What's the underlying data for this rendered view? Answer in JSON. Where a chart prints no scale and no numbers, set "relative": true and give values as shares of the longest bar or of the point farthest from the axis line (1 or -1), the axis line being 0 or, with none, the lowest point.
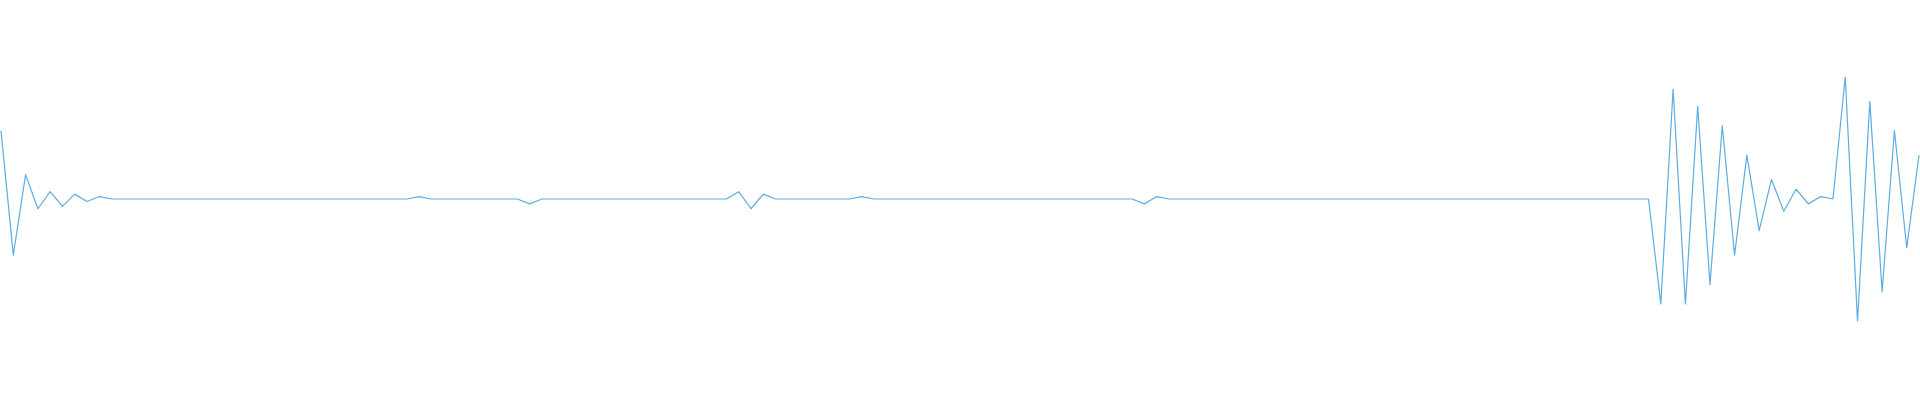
{
  "chart_data": {
    "type": "line",
    "relative": true,
    "line_style": "solid",
    "marker": "none",
    "categories": [
      null,
      null,
      null,
      null,
      null,
      null,
      null,
      null,
      null,
      null,
      null,
      null,
      null,
      null,
      null,
      null,
      null,
      null,
      null,
      null,
      null,
      null,
      null,
      null,
      null,
      null,
      null,
      null,
      null,
      null,
      null,
      null,
      null,
      null,
      null,
      null,
      null,
      null,
      null,
      null,
      null,
      null,
      null,
      null,
      null,
      null,
      null,
      null,
      null,
      null,
      null,
      null,
      null,
      null,
      null,
      null,
      null,
      null,
      null,
      null,
      null,
      null,
      null,
      null,
      null,
      null,
      null,
      null,
      null,
      null,
      null,
      null,
      null,
      null,
      null,
      null,
      null,
      null,
      null,
      null,
      null,
      null,
      null,
      null,
      null,
      null,
      null,
      null,
      null,
      null,
      null,
      null,
      null,
      null,
      null,
      null,
      null,
      null,
      null,
      null,
      null,
      null,
      null,
      null,
      null,
      null,
      null,
      null,
      null,
      null,
      null,
      null,
      null,
      null,
      null,
      null,
      null,
      null,
      null,
      null,
      null,
      null,
      null,
      null,
      null,
      null,
      null,
      null,
      null,
      null,
      null,
      null,
      null,
      null,
      null,
      null,
      null,
      null,
      null,
      null,
      null,
      null,
      null,
      null,
      null,
      null,
      null,
      null,
      null,
      null,
      null,
      null,
      null,
      null,
      null,
      null,
      null
    ],
    "series": [
      {
        "color": "#5dade2",
        "values": [
          0.78,
          0.27,
          0.6,
          0.46,
          0.53,
          0.47,
          0.52,
          0.49,
          0.51,
          0.5,
          0.5,
          0.5,
          0.5,
          0.5,
          0.5,
          0.5,
          0.5,
          0.5,
          0.5,
          0.5,
          0.5,
          0.5,
          0.5,
          0.5,
          0.5,
          0.5,
          0.5,
          0.5,
          0.5,
          0.5,
          0.5,
          0.5,
          0.5,
          0.5,
          0.51,
          0.5,
          0.5,
          0.5,
          0.5,
          0.5,
          0.5,
          0.5,
          0.5,
          0.48,
          0.5,
          0.5,
          0.5,
          0.5,
          0.5,
          0.5,
          0.5,
          0.5,
          0.5,
          0.5,
          0.5,
          0.5,
          0.5,
          0.5,
          0.5,
          0.5,
          0.53,
          0.46,
          0.52,
          0.5,
          0.5,
          0.5,
          0.5,
          0.5,
          0.5,
          0.5,
          0.51,
          0.5,
          0.5,
          0.5,
          0.5,
          0.5,
          0.5,
          0.5,
          0.5,
          0.5,
          0.5,
          0.5,
          0.5,
          0.5,
          0.5,
          0.5,
          0.5,
          0.5,
          0.5,
          0.5,
          0.5,
          0.5,
          0.5,
          0.48,
          0.51,
          0.5,
          0.5,
          0.5,
          0.5,
          0.5,
          0.5,
          0.5,
          0.5,
          0.5,
          0.5,
          0.5,
          0.5,
          0.5,
          0.5,
          0.5,
          0.5,
          0.5,
          0.5,
          0.5,
          0.5,
          0.5,
          0.5,
          0.5,
          0.5,
          0.5,
          0.5,
          0.5,
          0.5,
          0.5,
          0.5,
          0.5,
          0.5,
          0.5,
          0.5,
          0.5,
          0.5,
          0.5,
          0.5,
          0.5,
          0.5,
          0.07,
          0.95,
          0.07,
          0.88,
          0.15,
          0.8,
          0.27,
          0.68,
          0.37,
          0.58,
          0.45,
          0.54,
          0.48,
          0.51,
          0.5,
          1,
          0,
          0.9,
          0.12,
          0.78,
          0.3,
          0.68
        ]
      }
    ]
  }
}
